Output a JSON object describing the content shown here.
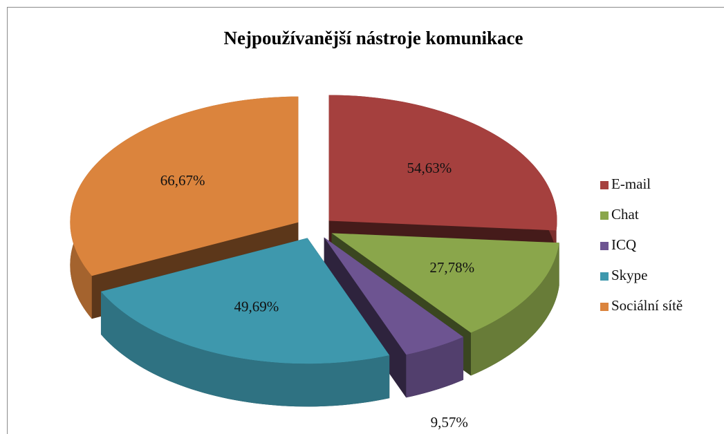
{
  "chart_data": {
    "type": "pie3d",
    "title": "Nejpoužívanější nástroje komunikace",
    "categories": [
      "E-mail",
      "Chat",
      "ICQ",
      "Skype",
      "Sociální sítě"
    ],
    "values": [
      54.63,
      27.78,
      9.57,
      49.69,
      66.67
    ],
    "value_labels": [
      "54,63%",
      "27,78%",
      "9,57%",
      "49,69%",
      "66,67%"
    ],
    "colors": [
      "#a5403e",
      "#8aa64b",
      "#6d5491",
      "#3e98ad",
      "#db843d"
    ],
    "legend": "right"
  }
}
